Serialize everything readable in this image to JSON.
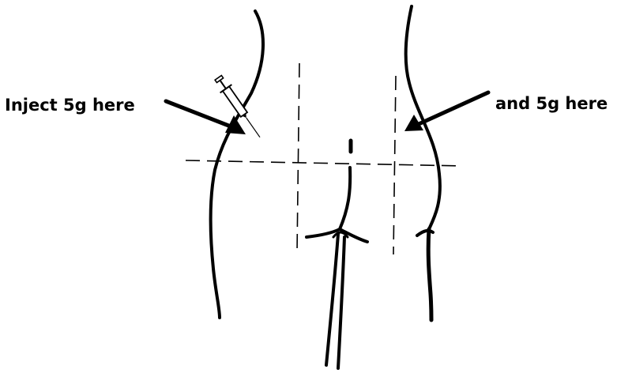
{
  "labels": {
    "left": "Inject 5g here",
    "right": "and 5g here"
  },
  "colors": {
    "ink": "#000000",
    "background": "#ffffff"
  }
}
